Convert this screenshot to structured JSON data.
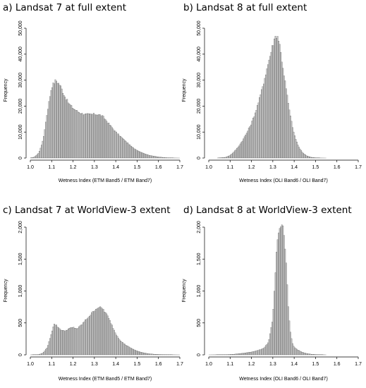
{
  "figure": {
    "panels": [
      {
        "title": "a) Landsat 7 at full extent"
      },
      {
        "title": "b) Landsat 8 at full extent"
      },
      {
        "title": "c) Landsat 7 at WorldView-3 extent"
      },
      {
        "title": "d) Landsat 8 at WorldView-3 extent"
      }
    ]
  },
  "chart_data": [
    {
      "type": "bar",
      "title": "a) Landsat 7 at full extent",
      "xlabel": "Wetness Index (ETM Band5 / ETM Band7)",
      "ylabel": "Frequency",
      "xlim": [
        1.0,
        1.7
      ],
      "ylim": [
        0,
        50000
      ],
      "xticks": [
        "1.0",
        "1.1",
        "1.2",
        "1.3",
        "1.4",
        "1.5",
        "1.6",
        "1.7"
      ],
      "yticks": [
        "0",
        "10,000",
        "20,000",
        "30,000",
        "40,000",
        "50,000"
      ],
      "bin_width": 0.005,
      "profile": [
        [
          1.0,
          0
        ],
        [
          1.02,
          400
        ],
        [
          1.04,
          2000
        ],
        [
          1.06,
          7000
        ],
        [
          1.08,
          18000
        ],
        [
          1.1,
          27500
        ],
        [
          1.12,
          30000
        ],
        [
          1.14,
          28000
        ],
        [
          1.16,
          24000
        ],
        [
          1.18,
          21000
        ],
        [
          1.2,
          19200
        ],
        [
          1.22,
          18000
        ],
        [
          1.24,
          17200
        ],
        [
          1.26,
          16800
        ],
        [
          1.28,
          16800
        ],
        [
          1.3,
          16900
        ],
        [
          1.32,
          16800
        ],
        [
          1.34,
          16000
        ],
        [
          1.36,
          14000
        ],
        [
          1.38,
          12000
        ],
        [
          1.4,
          10000
        ],
        [
          1.42,
          8500
        ],
        [
          1.44,
          7000
        ],
        [
          1.46,
          5500
        ],
        [
          1.48,
          4000
        ],
        [
          1.5,
          3000
        ],
        [
          1.52,
          2200
        ],
        [
          1.54,
          1500
        ],
        [
          1.56,
          1000
        ],
        [
          1.58,
          700
        ],
        [
          1.6,
          400
        ],
        [
          1.62,
          250
        ],
        [
          1.64,
          120
        ],
        [
          1.66,
          50
        ],
        [
          1.68,
          20
        ],
        [
          1.7,
          0
        ]
      ]
    },
    {
      "type": "bar",
      "title": "b) Landsat 8 at full extent",
      "xlabel": "Wetness Index (OLI Band6 / OLI Band7)",
      "ylabel": "Frequency",
      "xlim": [
        1.0,
        1.7
      ],
      "ylim": [
        0,
        50000
      ],
      "xticks": [
        "1.0",
        "1.1",
        "1.2",
        "1.3",
        "1.4",
        "1.5",
        "1.6",
        "1.7"
      ],
      "yticks": [
        "0",
        "10,000",
        "20,000",
        "30,000",
        "40,000",
        "50,000"
      ],
      "bin_width": 0.005,
      "profile": [
        [
          1.0,
          0
        ],
        [
          1.04,
          0
        ],
        [
          1.08,
          300
        ],
        [
          1.1,
          1000
        ],
        [
          1.12,
          2500
        ],
        [
          1.14,
          4500
        ],
        [
          1.16,
          7000
        ],
        [
          1.18,
          10000
        ],
        [
          1.2,
          13500
        ],
        [
          1.22,
          18000
        ],
        [
          1.24,
          23500
        ],
        [
          1.26,
          30000
        ],
        [
          1.28,
          37000
        ],
        [
          1.3,
          43500
        ],
        [
          1.31,
          46500
        ],
        [
          1.32,
          47500
        ],
        [
          1.33,
          45000
        ],
        [
          1.34,
          39000
        ],
        [
          1.36,
          28000
        ],
        [
          1.38,
          17000
        ],
        [
          1.4,
          9000
        ],
        [
          1.42,
          4500
        ],
        [
          1.44,
          2000
        ],
        [
          1.46,
          800
        ],
        [
          1.48,
          300
        ],
        [
          1.5,
          100
        ],
        [
          1.52,
          30
        ],
        [
          1.55,
          0
        ],
        [
          1.7,
          0
        ]
      ]
    },
    {
      "type": "bar",
      "title": "c) Landsat 7 at WorldView-3 extent",
      "xlabel": "Wetness Index (ETM Band5 / ETM Band7)",
      "ylabel": "Frequency",
      "xlim": [
        1.0,
        1.7
      ],
      "ylim": [
        0,
        2000
      ],
      "xticks": [
        "1.0",
        "1.1",
        "1.2",
        "1.3",
        "1.4",
        "1.5",
        "1.6",
        "1.7"
      ],
      "yticks": [
        "0",
        "500",
        "1,000",
        "1,500",
        "2,000"
      ],
      "bin_width": 0.005,
      "profile": [
        [
          1.0,
          0
        ],
        [
          1.04,
          5
        ],
        [
          1.06,
          30
        ],
        [
          1.08,
          120
        ],
        [
          1.1,
          350
        ],
        [
          1.11,
          480
        ],
        [
          1.12,
          470
        ],
        [
          1.14,
          400
        ],
        [
          1.16,
          370
        ],
        [
          1.18,
          410
        ],
        [
          1.2,
          430
        ],
        [
          1.22,
          410
        ],
        [
          1.24,
          470
        ],
        [
          1.26,
          550
        ],
        [
          1.28,
          620
        ],
        [
          1.3,
          700
        ],
        [
          1.32,
          750
        ],
        [
          1.34,
          720
        ],
        [
          1.36,
          620
        ],
        [
          1.38,
          480
        ],
        [
          1.4,
          330
        ],
        [
          1.42,
          230
        ],
        [
          1.44,
          170
        ],
        [
          1.46,
          130
        ],
        [
          1.48,
          90
        ],
        [
          1.5,
          60
        ],
        [
          1.52,
          40
        ],
        [
          1.54,
          25
        ],
        [
          1.56,
          15
        ],
        [
          1.58,
          10
        ],
        [
          1.6,
          6
        ],
        [
          1.65,
          2
        ],
        [
          1.7,
          0
        ]
      ]
    },
    {
      "type": "bar",
      "title": "d) Landsat 8 at WorldView-3 extent",
      "xlabel": "Wetness Index (OLI Band6 / OLI Band7)",
      "ylabel": "Frequency",
      "xlim": [
        1.0,
        1.7
      ],
      "ylim": [
        0,
        2000
      ],
      "xticks": [
        "1.0",
        "1.1",
        "1.2",
        "1.3",
        "1.4",
        "1.5",
        "1.6",
        "1.7"
      ],
      "yticks": [
        "0",
        "500",
        "1,000",
        "1,500",
        "2,000"
      ],
      "bin_width": 0.005,
      "profile": [
        [
          1.0,
          0
        ],
        [
          1.08,
          3
        ],
        [
          1.12,
          10
        ],
        [
          1.16,
          25
        ],
        [
          1.2,
          45
        ],
        [
          1.22,
          60
        ],
        [
          1.24,
          80
        ],
        [
          1.26,
          110
        ],
        [
          1.28,
          200
        ],
        [
          1.3,
          550
        ],
        [
          1.31,
          1150
        ],
        [
          1.32,
          1750
        ],
        [
          1.33,
          2020
        ],
        [
          1.34,
          2050
        ],
        [
          1.35,
          2000
        ],
        [
          1.36,
          1600
        ],
        [
          1.37,
          900
        ],
        [
          1.38,
          400
        ],
        [
          1.39,
          200
        ],
        [
          1.4,
          120
        ],
        [
          1.42,
          70
        ],
        [
          1.44,
          40
        ],
        [
          1.46,
          20
        ],
        [
          1.48,
          10
        ],
        [
          1.5,
          5
        ],
        [
          1.55,
          0
        ],
        [
          1.7,
          0
        ]
      ]
    }
  ]
}
